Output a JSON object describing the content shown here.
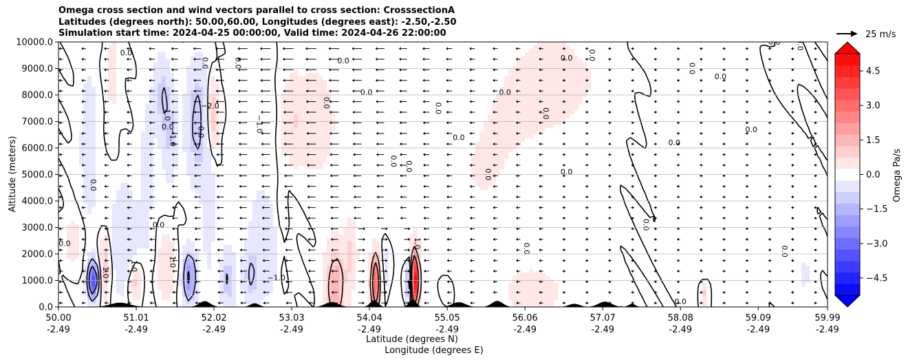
{
  "chart_data": {
    "type": "heatmap",
    "title_lines": [
      "Omega cross section and wind vectors parallel to cross section: CrosssectionA",
      "Latitudes (degrees north): 50.00,60.00, Longitudes (degrees east): -2.50,-2.50",
      "Simulation start time: 2024-04-25 00:00:00, Valid time: 2024-04-26 22:00:00"
    ],
    "ylabel": "Altitude (meters)",
    "xlabel_lat": "Latitude (degrees N)",
    "xlabel_lon": "Longitude (degrees E)",
    "ylim": [
      0,
      10000
    ],
    "xlim": [
      50.0,
      59.99
    ],
    "y_ticks": [
      {
        "value": 0,
        "label": "0.0"
      },
      {
        "value": 1000,
        "label": "1000.0"
      },
      {
        "value": 2000,
        "label": "2000.0"
      },
      {
        "value": 3000,
        "label": "3000.0"
      },
      {
        "value": 4000,
        "label": "4000.0"
      },
      {
        "value": 5000,
        "label": "5000.0"
      },
      {
        "value": 6000,
        "label": "6000.0"
      },
      {
        "value": 7000,
        "label": "7000.0"
      },
      {
        "value": 8000,
        "label": "8000.0"
      },
      {
        "value": 9000,
        "label": "9000.0"
      },
      {
        "value": 10000,
        "label": "10000.0"
      }
    ],
    "x_ticks": [
      {
        "value": 50.0,
        "lat": "50.00",
        "lon": "-2.49"
      },
      {
        "value": 51.01,
        "lat": "51.01",
        "lon": "-2.49"
      },
      {
        "value": 52.02,
        "lat": "52.02",
        "lon": "-2.49"
      },
      {
        "value": 53.03,
        "lat": "53.03",
        "lon": "-2.49"
      },
      {
        "value": 54.04,
        "lat": "54.04",
        "lon": "-2.49"
      },
      {
        "value": 55.05,
        "lat": "55.05",
        "lon": "-2.49"
      },
      {
        "value": 56.06,
        "lat": "56.06",
        "lon": "-2.49"
      },
      {
        "value": 57.07,
        "lat": "57.07",
        "lon": "-2.49"
      },
      {
        "value": 58.08,
        "lat": "58.08",
        "lon": "-2.49"
      },
      {
        "value": 59.09,
        "lat": "59.09",
        "lon": "-2.49"
      },
      {
        "value": 59.99,
        "lat": "59.99",
        "lon": "-2.49"
      }
    ],
    "grid": "horizontal",
    "colorbar": {
      "label": "Omega Pa/s",
      "range": [
        -5.25,
        5.25
      ],
      "ticks": [
        {
          "value": 4.5,
          "label": "4.5"
        },
        {
          "value": 3.0,
          "label": "3.0"
        },
        {
          "value": 1.5,
          "label": "1.5"
        },
        {
          "value": 0.0,
          "label": "0.0"
        },
        {
          "value": -1.5,
          "label": "−1.5"
        },
        {
          "value": -3.0,
          "label": "−3.0"
        },
        {
          "value": -4.5,
          "label": "−4.5"
        }
      ],
      "colormap": "bwr",
      "extend": "both"
    },
    "quiver_key": {
      "label": "25 m/s",
      "value": 25
    },
    "contour_labels": [
      {
        "x": 50.08,
        "y": 2300,
        "label": "0.0"
      },
      {
        "x": 50.42,
        "y": 4600,
        "label": "0.0"
      },
      {
        "x": 50.58,
        "y": 1300,
        "label": "1.0"
      },
      {
        "x": 50.95,
        "y": 1550,
        "label": "1.0"
      },
      {
        "x": 50.88,
        "y": 9500,
        "label": "0.0"
      },
      {
        "x": 51.3,
        "y": 3000,
        "label": "0.0"
      },
      {
        "x": 51.38,
        "y": 7250,
        "label": "1.0"
      },
      {
        "x": 51.42,
        "y": 6700,
        "label": "0.0"
      },
      {
        "x": 51.45,
        "y": 6400,
        "label": "−1.0"
      },
      {
        "x": 51.45,
        "y": 1700,
        "label": "1.0"
      },
      {
        "x": 51.82,
        "y": 6600,
        "label": "0.0"
      },
      {
        "x": 51.87,
        "y": 9200,
        "label": "0.0"
      },
      {
        "x": 51.97,
        "y": 7500,
        "label": "−2.0"
      },
      {
        "x": 52.3,
        "y": 9200,
        "label": "0.0"
      },
      {
        "x": 52.58,
        "y": 6900,
        "label": "−1.0"
      },
      {
        "x": 52.83,
        "y": 1000,
        "label": "−1.0"
      },
      {
        "x": 53.45,
        "y": 7700,
        "label": "0.0"
      },
      {
        "x": 53.7,
        "y": 9200,
        "label": "0.0"
      },
      {
        "x": 54.0,
        "y": 8000,
        "label": "0.0"
      },
      {
        "x": 54.32,
        "y": 5500,
        "label": "0.0"
      },
      {
        "x": 54.52,
        "y": 5300,
        "label": "0.0"
      },
      {
        "x": 54.63,
        "y": 2400,
        "label": "1.0"
      },
      {
        "x": 54.9,
        "y": 7500,
        "label": "0.0"
      },
      {
        "x": 55.2,
        "y": 6300,
        "label": "0.0"
      },
      {
        "x": 55.55,
        "y": 5000,
        "label": "0.0"
      },
      {
        "x": 55.8,
        "y": 8000,
        "label": "0.0"
      },
      {
        "x": 56.05,
        "y": 2200,
        "label": "0.0"
      },
      {
        "x": 56.3,
        "y": 7300,
        "label": "0.0"
      },
      {
        "x": 56.6,
        "y": 9300,
        "label": "0.0"
      },
      {
        "x": 56.6,
        "y": 5000,
        "label": "0.0"
      },
      {
        "x": 56.9,
        "y": 9500,
        "label": "0.0"
      },
      {
        "x": 57.6,
        "y": 3100,
        "label": "0.0"
      },
      {
        "x": 58.0,
        "y": 6100,
        "label": "0.0"
      },
      {
        "x": 58.2,
        "y": 9000,
        "label": "0.0"
      },
      {
        "x": 58.08,
        "y": 100,
        "label": "0.0"
      },
      {
        "x": 58.6,
        "y": 8600,
        "label": "0.0"
      },
      {
        "x": 59.0,
        "y": 6600,
        "label": "0.0"
      },
      {
        "x": 59.4,
        "y": 2100,
        "label": "0.0"
      },
      {
        "x": 59.3,
        "y": 9900,
        "label": "0.0"
      },
      {
        "x": 59.6,
        "y": 9900,
        "label": "0.0"
      }
    ]
  }
}
